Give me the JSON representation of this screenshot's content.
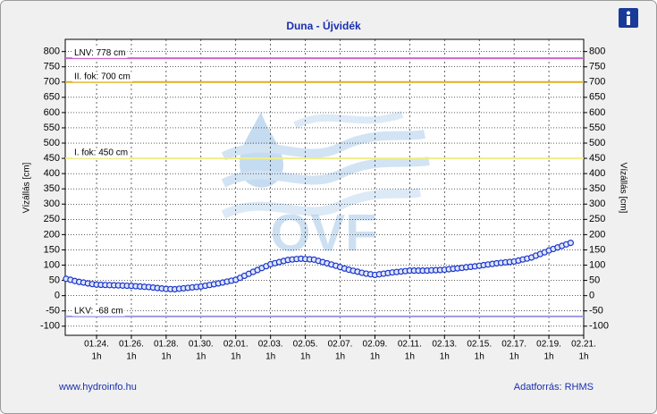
{
  "chart_data": {
    "type": "line",
    "title": "Duna - Újvidék",
    "y_label": "Vízállás [cm]",
    "y2_label": "Vízállás [cm]",
    "watermark": "OVF",
    "footer_left": "www.hydroinfo.hu",
    "footer_right": "Adatforrás: RHMS",
    "xlim": [
      -1.8,
      28
    ],
    "xticks": [
      {
        "value": 0,
        "label": "01.24."
      },
      {
        "value": 2,
        "label": "01.26."
      },
      {
        "value": 4,
        "label": "01.28."
      },
      {
        "value": 6,
        "label": "01.30."
      },
      {
        "value": 8,
        "label": "02.01."
      },
      {
        "value": 10,
        "label": "02.03."
      },
      {
        "value": 12,
        "label": "02.05."
      },
      {
        "value": 14,
        "label": "02.07."
      },
      {
        "value": 16,
        "label": "02.09."
      },
      {
        "value": 18,
        "label": "02.11."
      },
      {
        "value": 20,
        "label": "02.13."
      },
      {
        "value": 22,
        "label": "02.15."
      },
      {
        "value": 24,
        "label": "02.17."
      },
      {
        "value": 26,
        "label": "02.19."
      },
      {
        "value": 28,
        "label": "02.21."
      }
    ],
    "xtick_hour_label": "1h",
    "ylim": [
      -130,
      840
    ],
    "yticks": [
      -100,
      -50,
      0,
      50,
      100,
      150,
      200,
      250,
      300,
      350,
      400,
      450,
      500,
      550,
      600,
      650,
      700,
      750,
      800
    ],
    "y2lim": [
      -130,
      840
    ],
    "y2ticks": [
      -100,
      -50,
      0,
      50,
      100,
      150,
      200,
      250,
      300,
      350,
      400,
      450,
      500,
      550,
      600,
      650,
      700,
      750,
      800
    ],
    "grid": true,
    "thresholds": [
      {
        "label": "LNV: 778 cm",
        "value": 778,
        "color": "#cc66cc"
      },
      {
        "label": "II. fok: 700 cm",
        "value": 700,
        "color": "#e0b020"
      },
      {
        "label": "I. fok: 450 cm",
        "value": 450,
        "color": "#eeee88"
      },
      {
        "label": "LKV: -68 cm",
        "value": -68,
        "color": "#9a9ae0"
      }
    ],
    "x": [
      -1.75,
      -1.5,
      -1.25,
      -1,
      -0.75,
      -0.5,
      -0.25,
      0,
      0.25,
      0.5,
      0.75,
      1,
      1.25,
      1.5,
      1.75,
      2,
      2.25,
      2.5,
      2.75,
      3,
      3.25,
      3.5,
      3.75,
      4,
      4.25,
      4.5,
      4.75,
      5,
      5.25,
      5.5,
      5.75,
      6,
      6.25,
      6.5,
      6.75,
      7,
      7.25,
      7.5,
      7.75,
      8,
      8.25,
      8.5,
      8.75,
      9,
      9.25,
      9.5,
      9.75,
      10,
      10.25,
      10.5,
      10.75,
      11,
      11.25,
      11.5,
      11.75,
      12,
      12.25,
      12.5,
      12.75,
      13,
      13.25,
      13.5,
      13.75,
      14,
      14.25,
      14.5,
      14.75,
      15,
      15.25,
      15.5,
      15.75,
      16,
      16.25,
      16.5,
      16.75,
      17,
      17.25,
      17.5,
      17.75,
      18,
      18.25,
      18.5,
      18.75,
      19,
      19.25,
      19.5,
      19.75,
      20,
      20.25,
      20.5,
      20.75,
      21,
      21.25,
      21.5,
      21.75,
      22,
      22.25,
      22.5,
      22.75,
      23,
      23.25,
      23.5,
      23.75,
      24,
      24.25,
      24.5,
      24.75,
      25,
      25.25,
      25.5,
      25.75,
      26,
      26.25,
      26.5,
      26.75,
      27,
      27.25
    ],
    "series": [
      {
        "color": "#1a35c8",
        "values": [
          55,
          52,
          48,
          45,
          43,
          40,
          38,
          36,
          35.5,
          35,
          34.5,
          34,
          33.5,
          33,
          32.5,
          32,
          31,
          30,
          29,
          28,
          26.5,
          25,
          23.5,
          22,
          21.5,
          21,
          22.5,
          24,
          25.5,
          27,
          28.5,
          30,
          32.5,
          35,
          37.5,
          40,
          43,
          46,
          49,
          52,
          58.5,
          65,
          71.5,
          78,
          84,
          90.5,
          96.5,
          103,
          106.5,
          110,
          113.5,
          117,
          118.5,
          120,
          121,
          120,
          119,
          118,
          114,
          110,
          106,
          102,
          98,
          93.5,
          89,
          85,
          81.5,
          78.5,
          75,
          72,
          70,
          68,
          70,
          72,
          74,
          76,
          77.5,
          79,
          80.5,
          82,
          82,
          82,
          82,
          82,
          83,
          83.5,
          84,
          85,
          86.5,
          88,
          89.5,
          91,
          93,
          94.5,
          96,
          98,
          100,
          102,
          104,
          106,
          107.5,
          109,
          110.5,
          112,
          115,
          118.5,
          121.5,
          125,
          131,
          136.5,
          142,
          148,
          153,
          158,
          163,
          168,
          173
        ]
      }
    ]
  }
}
